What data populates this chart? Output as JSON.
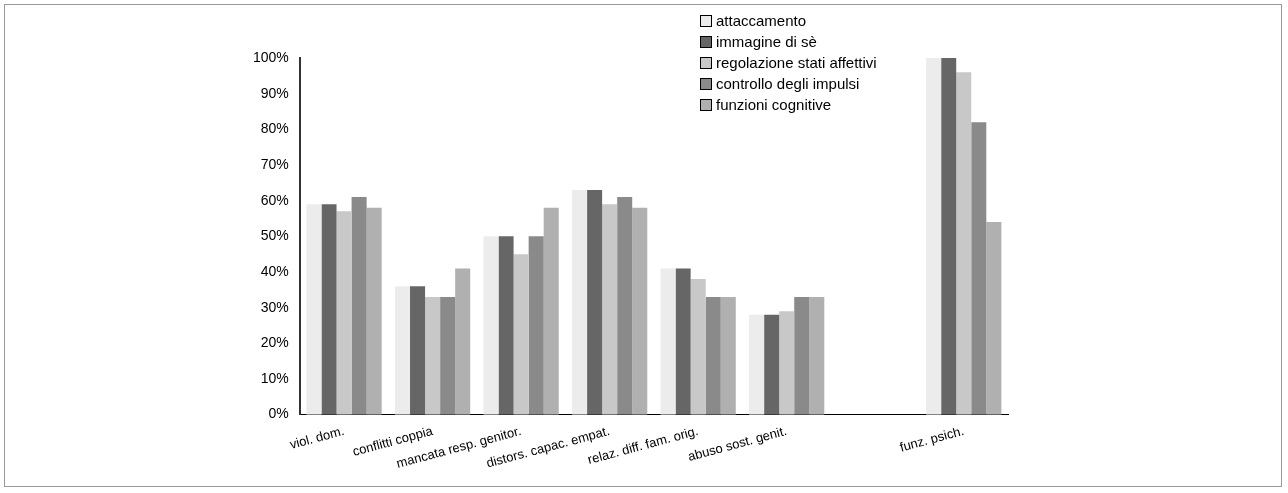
{
  "chart_data": {
    "type": "bar",
    "categories": [
      "viol. dom.",
      "conflitti coppia",
      "mancata resp. genitor.",
      "distors. capac. empat.",
      "relaz. diff. fam. orig.",
      "abuso sost. genit.",
      null,
      "funz. psich."
    ],
    "series": [
      {
        "name": "attaccamento",
        "color": "#ececec",
        "values": [
          59,
          36,
          50,
          63,
          41,
          28,
          null,
          100
        ]
      },
      {
        "name": "immagine di sè",
        "color": "#666666",
        "values": [
          59,
          36,
          50,
          63,
          41,
          28,
          null,
          100
        ]
      },
      {
        "name": "regolazione stati affettivi",
        "color": "#c8c8c8",
        "values": [
          57,
          33,
          45,
          59,
          38,
          29,
          null,
          96
        ]
      },
      {
        "name": "controllo degli impulsi",
        "color": "#8a8a8a",
        "values": [
          61,
          33,
          50,
          61,
          33,
          33,
          null,
          82
        ]
      },
      {
        "name": "funzioni cognitive",
        "color": "#b0b0b0",
        "values": [
          58,
          41,
          58,
          58,
          33,
          33,
          null,
          54
        ]
      }
    ],
    "ylim": [
      0,
      100
    ],
    "yticks": [
      {
        "value": 0,
        "label": "0%"
      },
      {
        "value": 10,
        "label": "10%"
      },
      {
        "value": 20,
        "label": "20%"
      },
      {
        "value": 30,
        "label": "30%"
      },
      {
        "value": 40,
        "label": "40%"
      },
      {
        "value": 50,
        "label": "50%"
      },
      {
        "value": 60,
        "label": "60%"
      },
      {
        "value": 70,
        "label": "70%"
      },
      {
        "value": 80,
        "label": "80%"
      },
      {
        "value": 90,
        "label": "90%"
      },
      {
        "value": 100,
        "label": "100%"
      }
    ],
    "grid": false,
    "legend": "top right"
  }
}
